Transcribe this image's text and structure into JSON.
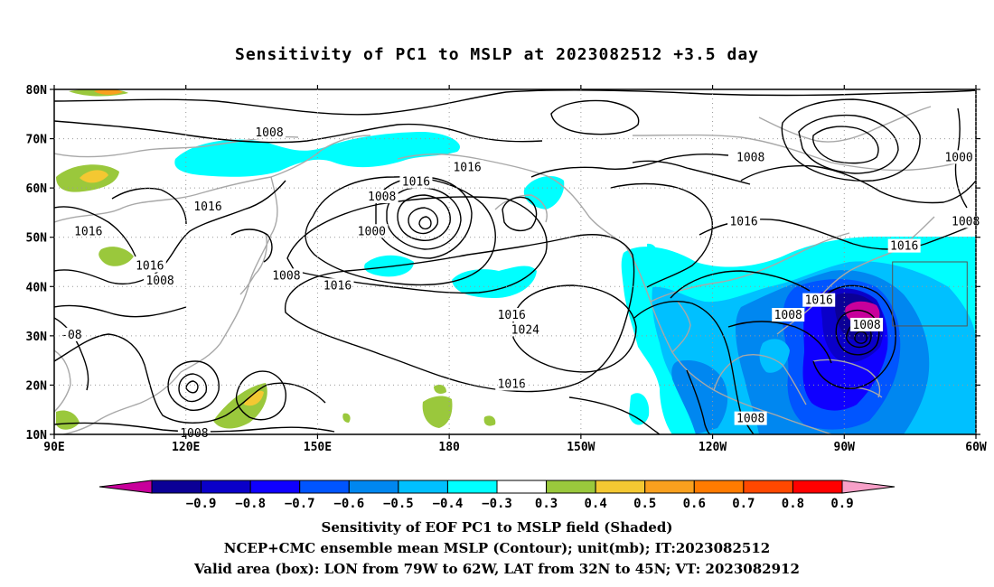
{
  "title": "Sensitivity of PC1 to MSLP at 2023082512 +3.5 day",
  "map": {
    "lon_range": [
      90,
      300
    ],
    "lat_range": [
      10,
      80
    ],
    "lat_ticks": [
      {
        "lat": 80,
        "label": "80N"
      },
      {
        "lat": 70,
        "label": "70N"
      },
      {
        "lat": 60,
        "label": "60N"
      },
      {
        "lat": 50,
        "label": "50N"
      },
      {
        "lat": 40,
        "label": "40N"
      },
      {
        "lat": 30,
        "label": "30N"
      },
      {
        "lat": 20,
        "label": "20N"
      },
      {
        "lat": 10,
        "label": "10N"
      }
    ],
    "lon_ticks": [
      {
        "lon": 90,
        "label": "90E"
      },
      {
        "lon": 120,
        "label": "120E"
      },
      {
        "lon": 150,
        "label": "150E"
      },
      {
        "lon": 180,
        "label": "180"
      },
      {
        "lon": 210,
        "label": "150W"
      },
      {
        "lon": 240,
        "label": "120W"
      },
      {
        "lon": 270,
        "label": "90W"
      },
      {
        "lon": 300,
        "label": "60W"
      }
    ],
    "valid_box": {
      "lon_w": 281,
      "lon_e": 298,
      "lat_s": 32,
      "lat_n": 45
    },
    "contour_labels": [
      {
        "lon": 153,
        "lat": 71,
        "text": "1008"
      },
      {
        "lon": 211,
        "lat": 64,
        "text": "1016"
      },
      {
        "lon": 196,
        "lat": 61,
        "text": "1016"
      },
      {
        "lon": 186,
        "lat": 58,
        "text": "1008"
      },
      {
        "lon": 294,
        "lat": 66,
        "text": "1008"
      },
      {
        "lon": 355,
        "lat": 66,
        "text": "1000"
      },
      {
        "lon": 135,
        "lat": 56,
        "text": "1016"
      },
      {
        "lon": 100,
        "lat": 51,
        "text": "1016"
      },
      {
        "lon": 183,
        "lat": 51,
        "text": "1000"
      },
      {
        "lon": 292,
        "lat": 53,
        "text": "1016"
      },
      {
        "lon": 357,
        "lat": 53,
        "text": "1008"
      },
      {
        "lon": 339,
        "lat": 48,
        "text": "1016"
      },
      {
        "lon": 158,
        "lat": 42,
        "text": "1008"
      },
      {
        "lon": 118,
        "lat": 44,
        "text": "1016"
      },
      {
        "lon": 121,
        "lat": 41,
        "text": "1008"
      },
      {
        "lon": 173,
        "lat": 40,
        "text": "1016"
      },
      {
        "lon": 314,
        "lat": 37,
        "text": "1016"
      },
      {
        "lon": 224,
        "lat": 34,
        "text": "1016"
      },
      {
        "lon": 305,
        "lat": 34,
        "text": "1008"
      },
      {
        "lon": 328,
        "lat": 32,
        "text": "1008"
      },
      {
        "lon": 228,
        "lat": 31,
        "text": "1024"
      },
      {
        "lon": 95,
        "lat": 30,
        "text": "-08"
      },
      {
        "lon": 224,
        "lat": 20,
        "text": "1016"
      },
      {
        "lon": 294,
        "lat": 13,
        "text": "1008"
      },
      {
        "lon": 131,
        "lat": 10,
        "text": "1008"
      }
    ]
  },
  "colorbar": {
    "labels": [
      "-0.9",
      "-0.8",
      "-0.7",
      "-0.6",
      "-0.5",
      "-0.4",
      "-0.3",
      "0.3",
      "0.4",
      "0.5",
      "0.6",
      "0.7",
      "0.8",
      "0.9"
    ],
    "colors": [
      "#c8009b",
      "#0b0096",
      "#0a00c9",
      "#0f00ff",
      "#0055ff",
      "#0087f0",
      "#00c0ff",
      "#00ffff",
      "#ffffff",
      "#9ac83c",
      "#f4c832",
      "#f9a01e",
      "#ff7b00",
      "#ff4800",
      "#ff0000",
      "#f7a0c8"
    ]
  },
  "shading_palette": {
    "cyan": "#00ffff",
    "skyblue": "#00c0ff",
    "blue": "#0087f0",
    "medblue": "#0055ff",
    "royal": "#0f00ff",
    "deepblue": "#0a00c9",
    "navy": "#0b0096",
    "magenta": "#c8009b",
    "green": "#9ac83c",
    "yellow": "#f4c832",
    "orange": "#f9a01e"
  },
  "captions": {
    "line1": "Sensitivity of EOF PC1 to MSLP field (Shaded)",
    "line2": "NCEP+CMC ensemble mean MSLP (Contour); unit(mb); IT:2023082512",
    "line3": "Valid area (box): LON from 79W to 62W, LAT from 32N to 45N; VT: 2023082912"
  }
}
